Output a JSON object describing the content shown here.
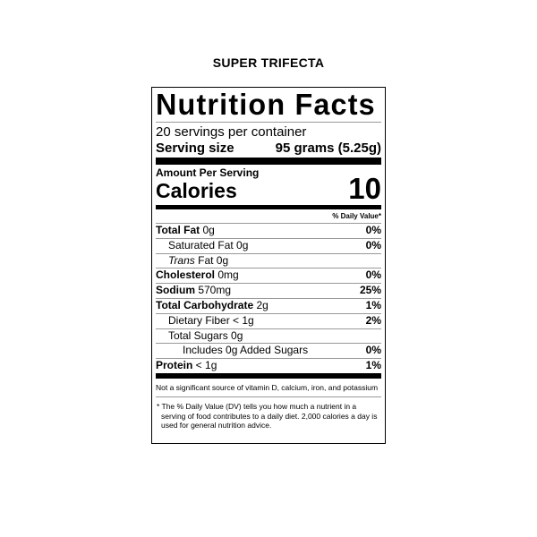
{
  "product_name": "SUPER TRIFECTA",
  "title": "Nutrition Facts",
  "servings_per_container": "20 servings per container",
  "serving_size_label": "Serving size",
  "serving_size_value": "95 grams (5.25g)",
  "amount_per_serving": "Amount Per Serving",
  "calories_label": "Calories",
  "calories_value": "10",
  "daily_value_header": "% Daily Value*",
  "nutrients": [
    {
      "name": "Total Fat",
      "amount": " 0g",
      "dv": "0%"
    },
    {
      "name": "Saturated Fat 0g",
      "amount": "",
      "dv": "0%"
    },
    {
      "name": "Trans",
      "amount": " Fat 0g",
      "dv": ""
    },
    {
      "name": "Cholesterol",
      "amount": " 0mg",
      "dv": "0%"
    },
    {
      "name": "Sodium",
      "amount": " 570mg",
      "dv": "25%"
    },
    {
      "name": "Total Carbohydrate",
      "amount": " 2g",
      "dv": "1%"
    },
    {
      "name": "Dietary Fiber < 1g",
      "amount": "",
      "dv": "2%"
    },
    {
      "name": "Total Sugars 0g",
      "amount": "",
      "dv": ""
    },
    {
      "name": "Includes 0g Added Sugars",
      "amount": "",
      "dv": "0%"
    },
    {
      "name": "Protein",
      "amount": " < 1g",
      "dv": "1%"
    }
  ],
  "not_significant": "Not a significant source of vitamin D, calcium, iron, and potassium",
  "footnote": "* The % Daily Value (DV) tells you how much a nutrient in a serving of food contributes to a daily diet. 2,000 calories a day is used for general nutrition advice."
}
